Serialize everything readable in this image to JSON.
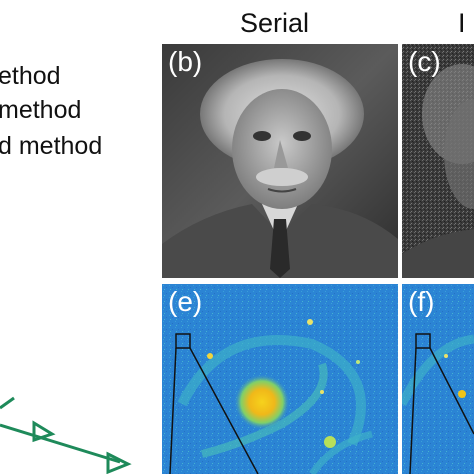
{
  "legend": {
    "entries": [
      "ethod",
      "method",
      "d method"
    ],
    "line_color": "#1e8a5a"
  },
  "columns": {
    "serial_title": "Serial",
    "clipped_title": "I"
  },
  "panels": [
    {
      "label": "(b)",
      "kind": "grayscale-portrait"
    },
    {
      "label": "(c)",
      "kind": "grayscale-portrait-noisy"
    },
    {
      "label": "(e)",
      "kind": "false-color-galaxy"
    },
    {
      "label": "(f)",
      "kind": "false-color-galaxy"
    }
  ],
  "colors": {
    "galaxy_background": "#2a86d6",
    "galaxy_core": "#f3c61a",
    "zoom_box_outline": "#111111",
    "plot_line": "#1e8a5a"
  }
}
